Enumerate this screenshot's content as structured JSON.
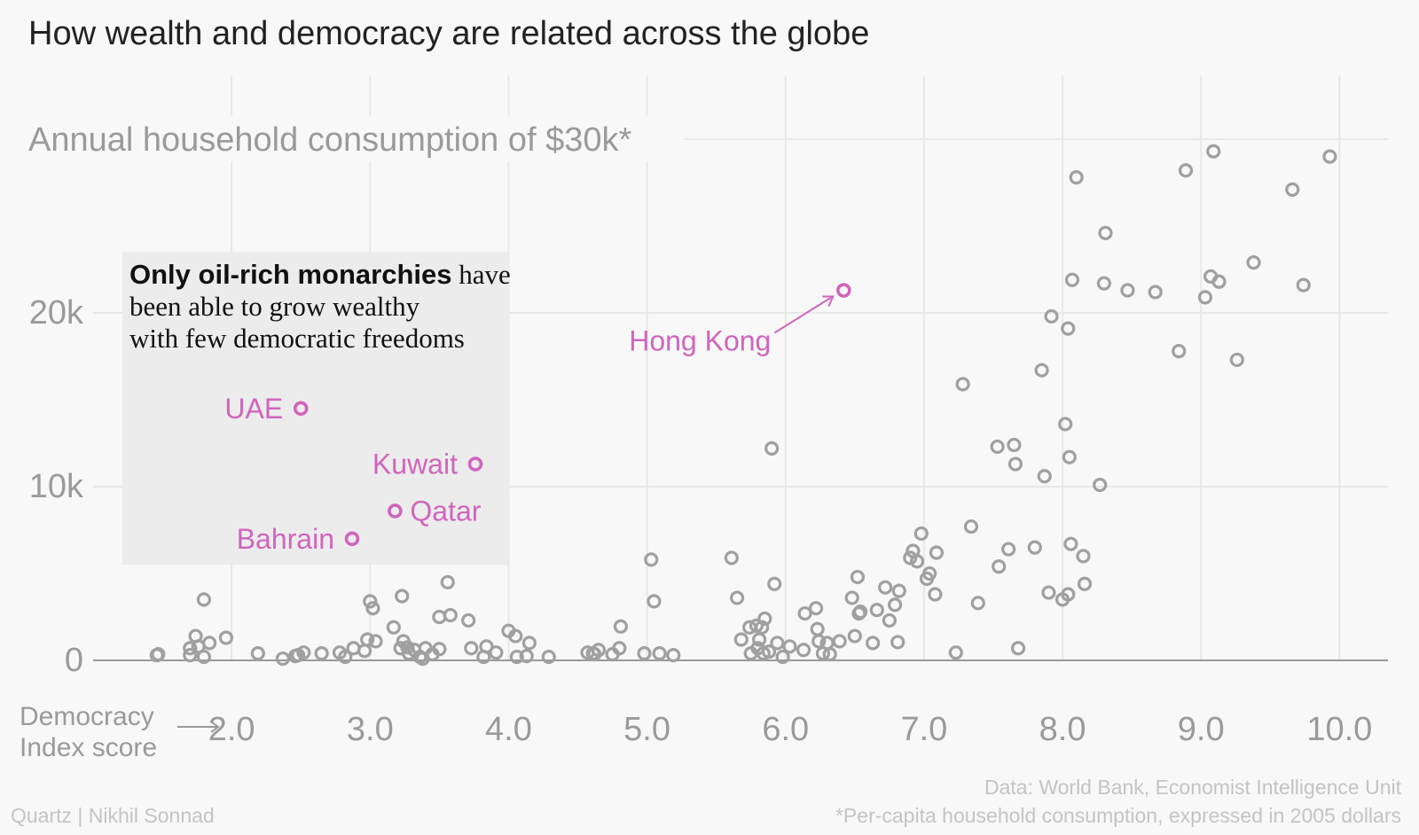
{
  "chart_data": {
    "type": "scatter",
    "title": "How wealth and democracy are related across the globe",
    "y_top_label": "Annual household consumption of $30k*",
    "xlabel": "Democracy Index score",
    "xlabel_lines": [
      "Democracy",
      "Index score"
    ],
    "xlim": [
      1.0,
      10.35
    ],
    "ylim": [
      0,
      30000
    ],
    "x_ticks": [
      2.0,
      3.0,
      4.0,
      5.0,
      6.0,
      7.0,
      8.0,
      9.0,
      10.0
    ],
    "x_tick_labels": [
      "2.0",
      "3.0",
      "4.0",
      "5.0",
      "6.0",
      "7.0",
      "8.0",
      "9.0",
      "10.0"
    ],
    "y_ticks": [
      0,
      10000,
      20000,
      30000
    ],
    "y_tick_labels": [
      "0",
      "10k",
      "20k",
      ""
    ],
    "grid": true,
    "colors": {
      "point": "#a0a0a0",
      "highlight": "#d065bd",
      "box": "#ececec"
    },
    "annotation_box": {
      "x_range": [
        1.0,
        4.0
      ],
      "y_range": [
        5500,
        23500
      ],
      "text_bold": "Only oil-rich monarchies",
      "text_line1_rest": " have",
      "text_line2": "been able to grow wealthy",
      "text_line3": "with few democratic freedoms"
    },
    "highlighted": [
      {
        "name": "UAE",
        "x": 2.5,
        "y": 14500,
        "label_side": "left"
      },
      {
        "name": "Kuwait",
        "x": 3.76,
        "y": 11300,
        "label_side": "left"
      },
      {
        "name": "Qatar",
        "x": 3.18,
        "y": 8600,
        "label_side": "right"
      },
      {
        "name": "Bahrain",
        "x": 2.87,
        "y": 7000,
        "label_side": "left"
      },
      {
        "name": "Hong Kong",
        "x": 6.42,
        "y": 21300,
        "label_side": "arrow"
      }
    ],
    "points": [
      [
        1.46,
        300
      ],
      [
        1.47,
        350
      ],
      [
        1.7,
        700
      ],
      [
        1.7,
        300
      ],
      [
        1.74,
        1400
      ],
      [
        1.76,
        800
      ],
      [
        1.8,
        3500
      ],
      [
        1.8,
        200
      ],
      [
        1.84,
        1000
      ],
      [
        1.96,
        1300
      ],
      [
        2.19,
        400
      ],
      [
        2.37,
        100
      ],
      [
        2.46,
        250
      ],
      [
        2.48,
        300
      ],
      [
        2.52,
        450
      ],
      [
        2.65,
        400
      ],
      [
        2.78,
        450
      ],
      [
        2.82,
        200
      ],
      [
        2.88,
        700
      ],
      [
        2.96,
        550
      ],
      [
        2.98,
        1200
      ],
      [
        3.0,
        3400
      ],
      [
        3.02,
        3000
      ],
      [
        3.04,
        1100
      ],
      [
        3.17,
        1900
      ],
      [
        3.22,
        700
      ],
      [
        3.23,
        3700
      ],
      [
        3.24,
        1100
      ],
      [
        3.27,
        750
      ],
      [
        3.28,
        400
      ],
      [
        3.32,
        600
      ],
      [
        3.36,
        200
      ],
      [
        3.38,
        100
      ],
      [
        3.4,
        700
      ],
      [
        3.45,
        350
      ],
      [
        3.5,
        650
      ],
      [
        3.5,
        2500
      ],
      [
        3.56,
        4500
      ],
      [
        3.58,
        2600
      ],
      [
        3.71,
        2300
      ],
      [
        3.73,
        700
      ],
      [
        3.82,
        200
      ],
      [
        3.84,
        800
      ],
      [
        3.91,
        450
      ],
      [
        4.0,
        1700
      ],
      [
        4.05,
        1400
      ],
      [
        4.06,
        200
      ],
      [
        4.13,
        250
      ],
      [
        4.15,
        1000
      ],
      [
        4.29,
        200
      ],
      [
        4.57,
        450
      ],
      [
        4.61,
        400
      ],
      [
        4.62,
        350
      ],
      [
        4.65,
        600
      ],
      [
        4.75,
        350
      ],
      [
        4.8,
        700
      ],
      [
        4.81,
        1950
      ],
      [
        4.98,
        400
      ],
      [
        5.03,
        5800
      ],
      [
        5.05,
        3400
      ],
      [
        5.09,
        400
      ],
      [
        5.19,
        300
      ],
      [
        5.61,
        5900
      ],
      [
        5.65,
        3600
      ],
      [
        5.68,
        1200
      ],
      [
        5.74,
        1900
      ],
      [
        5.75,
        400
      ],
      [
        5.79,
        2000
      ],
      [
        5.8,
        700
      ],
      [
        5.81,
        1200
      ],
      [
        5.83,
        1900
      ],
      [
        5.84,
        400
      ],
      [
        5.85,
        2400
      ],
      [
        5.88,
        500
      ],
      [
        5.9,
        12200
      ],
      [
        5.92,
        4400
      ],
      [
        5.94,
        1000
      ],
      [
        5.98,
        200
      ],
      [
        6.03,
        800
      ],
      [
        6.13,
        600
      ],
      [
        6.14,
        2700
      ],
      [
        6.22,
        3000
      ],
      [
        6.23,
        1800
      ],
      [
        6.24,
        1100
      ],
      [
        6.27,
        400
      ],
      [
        6.3,
        1000
      ],
      [
        6.32,
        350
      ],
      [
        6.39,
        1100
      ],
      [
        6.48,
        3600
      ],
      [
        6.5,
        1400
      ],
      [
        6.52,
        4800
      ],
      [
        6.53,
        2700
      ],
      [
        6.54,
        2800
      ],
      [
        6.63,
        1000
      ],
      [
        6.66,
        2900
      ],
      [
        6.72,
        4200
      ],
      [
        6.75,
        2300
      ],
      [
        6.79,
        3200
      ],
      [
        6.81,
        1050
      ],
      [
        6.82,
        4000
      ],
      [
        6.9,
        5900
      ],
      [
        6.92,
        6300
      ],
      [
        6.95,
        5700
      ],
      [
        6.98,
        7300
      ],
      [
        7.02,
        4700
      ],
      [
        7.04,
        5000
      ],
      [
        7.08,
        3800
      ],
      [
        7.09,
        6200
      ],
      [
        7.23,
        450
      ],
      [
        7.28,
        15900
      ],
      [
        7.34,
        7700
      ],
      [
        7.39,
        3300
      ],
      [
        7.53,
        12300
      ],
      [
        7.54,
        5400
      ],
      [
        7.61,
        6400
      ],
      [
        7.65,
        12400
      ],
      [
        7.66,
        11300
      ],
      [
        7.68,
        700
      ],
      [
        7.8,
        6500
      ],
      [
        7.85,
        16700
      ],
      [
        7.87,
        10600
      ],
      [
        7.9,
        3900
      ],
      [
        7.92,
        19800
      ],
      [
        8.0,
        3500
      ],
      [
        8.02,
        13600
      ],
      [
        8.04,
        3800
      ],
      [
        8.04,
        19100
      ],
      [
        8.05,
        11700
      ],
      [
        8.06,
        6700
      ],
      [
        8.07,
        21900
      ],
      [
        8.1,
        27800
      ],
      [
        8.15,
        6000
      ],
      [
        8.16,
        4400
      ],
      [
        8.27,
        10100
      ],
      [
        8.3,
        21700
      ],
      [
        8.31,
        24600
      ],
      [
        8.47,
        21300
      ],
      [
        8.67,
        21200
      ],
      [
        8.84,
        17800
      ],
      [
        8.89,
        28200
      ],
      [
        9.03,
        20900
      ],
      [
        9.07,
        22100
      ],
      [
        9.09,
        29300
      ],
      [
        9.13,
        21800
      ],
      [
        9.26,
        17300
      ],
      [
        9.38,
        22900
      ],
      [
        9.66,
        27100
      ],
      [
        9.74,
        21600
      ],
      [
        9.93,
        29000
      ]
    ]
  },
  "footer": {
    "source": "Data: World Bank, Economist Intelligence Unit",
    "note": "*Per-capita household consumption, expressed in 2005 dollars",
    "credit": "Quartz | Nikhil Sonnad"
  }
}
